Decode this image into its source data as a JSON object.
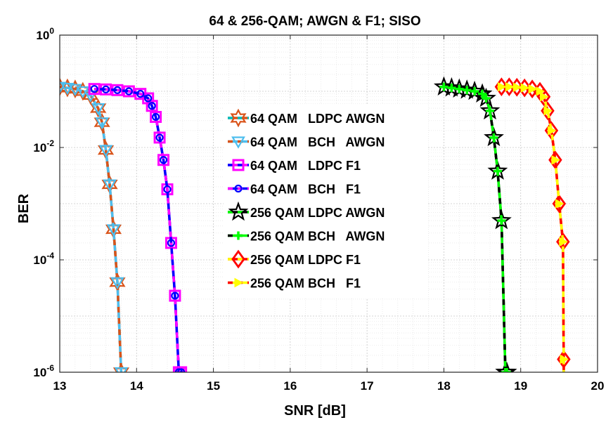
{
  "chart_data": {
    "type": "line",
    "title": "64 & 256-QAM; AWGN & F1; SISO",
    "xlabel": "SNR [dB]",
    "ylabel": "BER",
    "xlim": [
      13,
      20
    ],
    "ylim": [
      1e-06,
      1
    ],
    "yscale": "log",
    "grid": true,
    "legend_position": "center",
    "x_ticks": [
      "13",
      "14",
      "15",
      "16",
      "17",
      "18",
      "19",
      "20"
    ],
    "y_ticks": [
      {
        "base": "10",
        "exp": "0",
        "value": 1
      },
      {
        "base": "10",
        "exp": "-2",
        "value": 0.01
      },
      {
        "base": "10",
        "exp": "-4",
        "value": 0.0001
      },
      {
        "base": "10",
        "exp": "-6",
        "value": 1e-06
      }
    ],
    "series": [
      {
        "name": "64 QAM   LDPC AWGN",
        "color": "#d95319",
        "dash_color": "#d95319",
        "marker": "hexagram",
        "x": [
          13.0,
          13.1,
          13.2,
          13.3,
          13.4,
          13.5,
          13.55,
          13.6,
          13.65,
          13.7,
          13.75,
          13.8
        ],
        "y": [
          0.12,
          0.115,
          0.11,
          0.1,
          0.085,
          0.05,
          0.028,
          0.009,
          0.0022,
          0.00035,
          4e-05,
          1e-06
        ]
      },
      {
        "name": "64 QAM   BCH   AWGN",
        "color": "#4dbeee",
        "dash_color": "#4dbeee",
        "marker": "triangle-down",
        "x": [
          13.0,
          13.1,
          13.2,
          13.3,
          13.4,
          13.5,
          13.55,
          13.6,
          13.65,
          13.7,
          13.75,
          13.8
        ],
        "y": [
          0.12,
          0.115,
          0.11,
          0.1,
          0.085,
          0.05,
          0.028,
          0.009,
          0.0022,
          0.00035,
          4e-05,
          1e-06
        ]
      },
      {
        "name": "64 QAM   LDPC F1",
        "color": "#ff00ff",
        "dash_color": "#ff00ff",
        "marker": "square",
        "x": [
          13.45,
          13.6,
          13.75,
          13.9,
          14.05,
          14.15,
          14.2,
          14.25,
          14.3,
          14.35,
          14.4,
          14.45,
          14.5,
          14.55,
          14.58
        ],
        "y": [
          0.11,
          0.108,
          0.105,
          0.1,
          0.09,
          0.075,
          0.055,
          0.035,
          0.015,
          0.006,
          0.0018,
          0.0002,
          2.3e-05,
          1e-06,
          1e-06
        ]
      },
      {
        "name": "64 QAM   BCH   F1",
        "color": "#0000ff",
        "dash_color": "#0000ff",
        "marker": "circle",
        "x": [
          13.45,
          13.6,
          13.75,
          13.9,
          14.05,
          14.15,
          14.2,
          14.25,
          14.3,
          14.35,
          14.4,
          14.45,
          14.5,
          14.55,
          14.58
        ],
        "y": [
          0.11,
          0.108,
          0.105,
          0.1,
          0.09,
          0.075,
          0.055,
          0.035,
          0.015,
          0.006,
          0.0018,
          0.0002,
          2.3e-05,
          1e-06,
          1e-06
        ]
      },
      {
        "name": "256 QAM LDPC AWGN",
        "color": "#000000",
        "dash_color": "#000000",
        "marker": "pentagram",
        "x": [
          18.0,
          18.1,
          18.2,
          18.3,
          18.4,
          18.5,
          18.55,
          18.6,
          18.65,
          18.7,
          18.75,
          18.8,
          18.82
        ],
        "y": [
          0.12,
          0.115,
          0.11,
          0.105,
          0.1,
          0.09,
          0.075,
          0.045,
          0.015,
          0.0038,
          0.0005,
          1e-06,
          1e-06
        ]
      },
      {
        "name": "256 QAM BCH   AWGN",
        "color": "#00ff00",
        "dash_color": "#00ff00",
        "marker": "plus",
        "x": [
          18.0,
          18.1,
          18.2,
          18.3,
          18.4,
          18.5,
          18.55,
          18.6,
          18.65,
          18.7,
          18.75,
          18.8,
          18.82
        ],
        "y": [
          0.12,
          0.115,
          0.11,
          0.105,
          0.1,
          0.09,
          0.075,
          0.045,
          0.015,
          0.0038,
          0.0005,
          1e-06,
          1e-06
        ]
      },
      {
        "name": "256 QAM LDPC F1",
        "color": "#ff0000",
        "dash_color": "#ff0000",
        "marker": "diamond",
        "x": [
          18.75,
          18.85,
          18.95,
          19.05,
          19.15,
          19.25,
          19.3,
          19.35,
          19.4,
          19.45,
          19.5,
          19.55,
          19.56
        ],
        "y": [
          0.12,
          0.12,
          0.118,
          0.115,
          0.11,
          0.1,
          0.08,
          0.045,
          0.02,
          0.006,
          0.001,
          0.00021,
          1.7e-06
        ]
      },
      {
        "name": "256 QAM BCH   F1",
        "color": "#ffff00",
        "dash_color": "#ffff00",
        "marker": "arrow-right",
        "x": [
          18.75,
          18.85,
          18.95,
          19.05,
          19.15,
          19.25,
          19.3,
          19.35,
          19.4,
          19.45,
          19.5,
          19.55,
          19.56
        ],
        "y": [
          0.12,
          0.12,
          0.118,
          0.115,
          0.11,
          0.1,
          0.08,
          0.045,
          0.02,
          0.006,
          0.001,
          0.00021,
          1.7e-06
        ]
      }
    ]
  }
}
